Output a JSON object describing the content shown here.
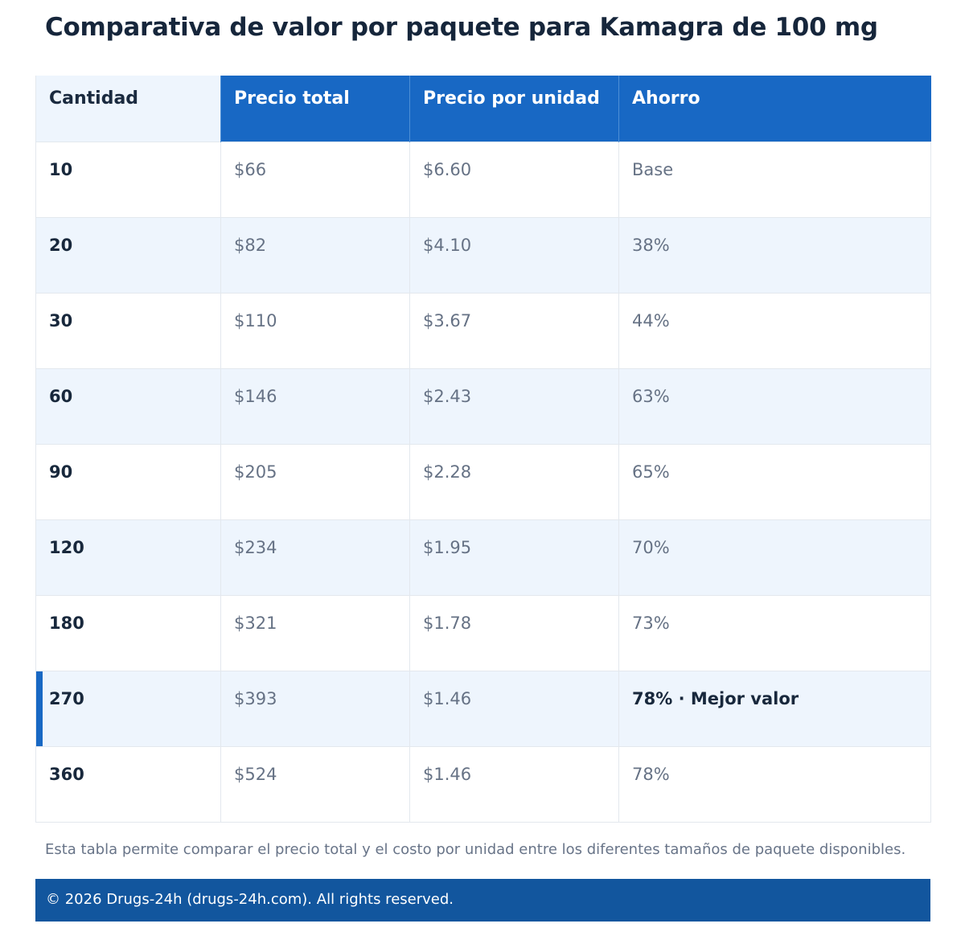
{
  "title": "Comparativa de valor por paquete para Kamagra de 100 mg",
  "table": {
    "headers": [
      "Cantidad",
      "Precio total",
      "Precio por unidad",
      "Ahorro"
    ],
    "rows": [
      {
        "qty": "10",
        "total": "$66",
        "unit": "$6.60",
        "save": "Base"
      },
      {
        "qty": "20",
        "total": "$82",
        "unit": "$4.10",
        "save": "38%"
      },
      {
        "qty": "30",
        "total": "$110",
        "unit": "$3.67",
        "save": "44%"
      },
      {
        "qty": "60",
        "total": "$146",
        "unit": "$2.43",
        "save": "63%"
      },
      {
        "qty": "90",
        "total": "$205",
        "unit": "$2.28",
        "save": "65%"
      },
      {
        "qty": "120",
        "total": "$234",
        "unit": "$1.95",
        "save": "70%"
      },
      {
        "qty": "180",
        "total": "$321",
        "unit": "$1.78",
        "save": "73%"
      },
      {
        "qty": "270",
        "total": "$393",
        "unit": "$1.46",
        "save": "78% · Mejor valor"
      },
      {
        "qty": "360",
        "total": "$524",
        "unit": "$1.46",
        "save": "78%"
      }
    ]
  },
  "note": "Esta tabla permite comparar el precio total y el costo por unidad entre los diferentes tamaños de paquete disponibles.",
  "footer": "© 2026 Drugs-24h (drugs-24h.com). All rights reserved.",
  "colors": {
    "header_blue": "#1868c4",
    "footer_blue": "#12569e",
    "alt_row": "#eef5fd"
  }
}
